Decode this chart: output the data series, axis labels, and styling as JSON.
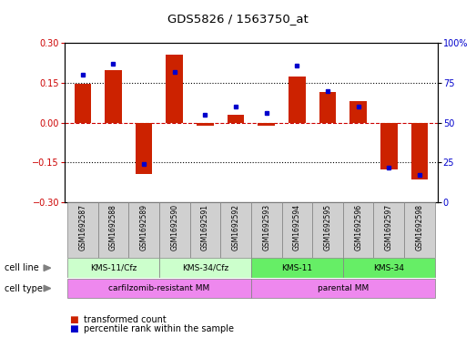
{
  "title": "GDS5826 / 1563750_at",
  "samples": [
    "GSM1692587",
    "GSM1692588",
    "GSM1692589",
    "GSM1692590",
    "GSM1692591",
    "GSM1692592",
    "GSM1692593",
    "GSM1692594",
    "GSM1692595",
    "GSM1692596",
    "GSM1692597",
    "GSM1692598"
  ],
  "transformed_count": [
    0.147,
    0.198,
    -0.195,
    0.255,
    -0.012,
    0.03,
    -0.012,
    0.175,
    0.115,
    0.08,
    -0.175,
    -0.215
  ],
  "percentile_rank": [
    80,
    87,
    24,
    82,
    55,
    60,
    56,
    86,
    70,
    60,
    22,
    17
  ],
  "cell_line_groups": [
    {
      "label": "KMS-11/Cfz",
      "start": 0,
      "end": 2,
      "color": "#ccffcc"
    },
    {
      "label": "KMS-34/Cfz",
      "start": 3,
      "end": 5,
      "color": "#ccffcc"
    },
    {
      "label": "KMS-11",
      "start": 6,
      "end": 8,
      "color": "#66ee66"
    },
    {
      "label": "KMS-34",
      "start": 9,
      "end": 11,
      "color": "#66ee66"
    }
  ],
  "cell_type_groups": [
    {
      "label": "carfilzomib-resistant MM",
      "start": 0,
      "end": 5,
      "color": "#ee88ee"
    },
    {
      "label": "parental MM",
      "start": 6,
      "end": 11,
      "color": "#ee88ee"
    }
  ],
  "bar_color": "#cc2200",
  "dot_color": "#0000cc",
  "bar_color_red": "#cc0000",
  "dot_color_blue": "#0000cc",
  "ylim_left": [
    -0.3,
    0.3
  ],
  "ylim_right": [
    0,
    100
  ],
  "yticks_left": [
    -0.3,
    -0.15,
    0,
    0.15,
    0.3
  ],
  "yticks_right": [
    0,
    25,
    50,
    75,
    100
  ],
  "ytick_labels_right": [
    "0",
    "25",
    "50",
    "75",
    "100%"
  ],
  "background_color": "#ffffff",
  "gray_bg": "#d0d0d0",
  "cell_line_label": "cell line",
  "cell_type_label": "cell type",
  "legend": [
    {
      "color": "#cc2200",
      "label": "transformed count"
    },
    {
      "color": "#0000cc",
      "label": "percentile rank within the sample"
    }
  ]
}
